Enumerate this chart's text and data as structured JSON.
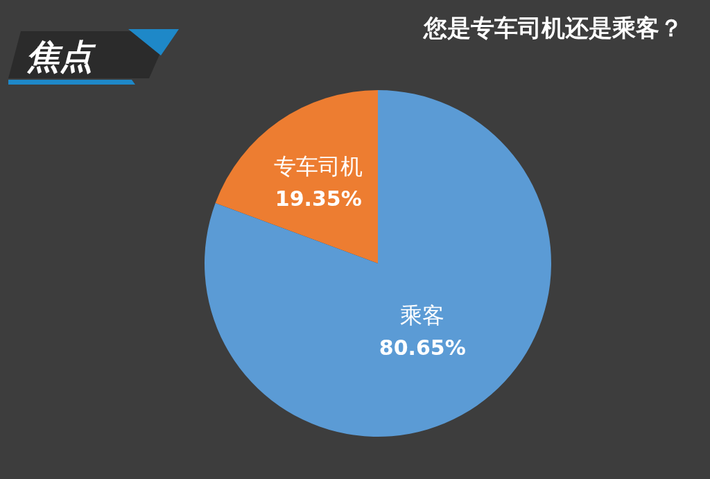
{
  "chart_data": {
    "type": "pie",
    "title": "您是专车司机还是乘客？",
    "annotations": [
      "焦点"
    ],
    "categories": [
      "专车司机",
      "乘客"
    ],
    "values": [
      19.35,
      80.65
    ],
    "colors": [
      "#ed7d31",
      "#5b9bd5"
    ],
    "value_labels": [
      "19.35%",
      "80.65%"
    ]
  }
}
